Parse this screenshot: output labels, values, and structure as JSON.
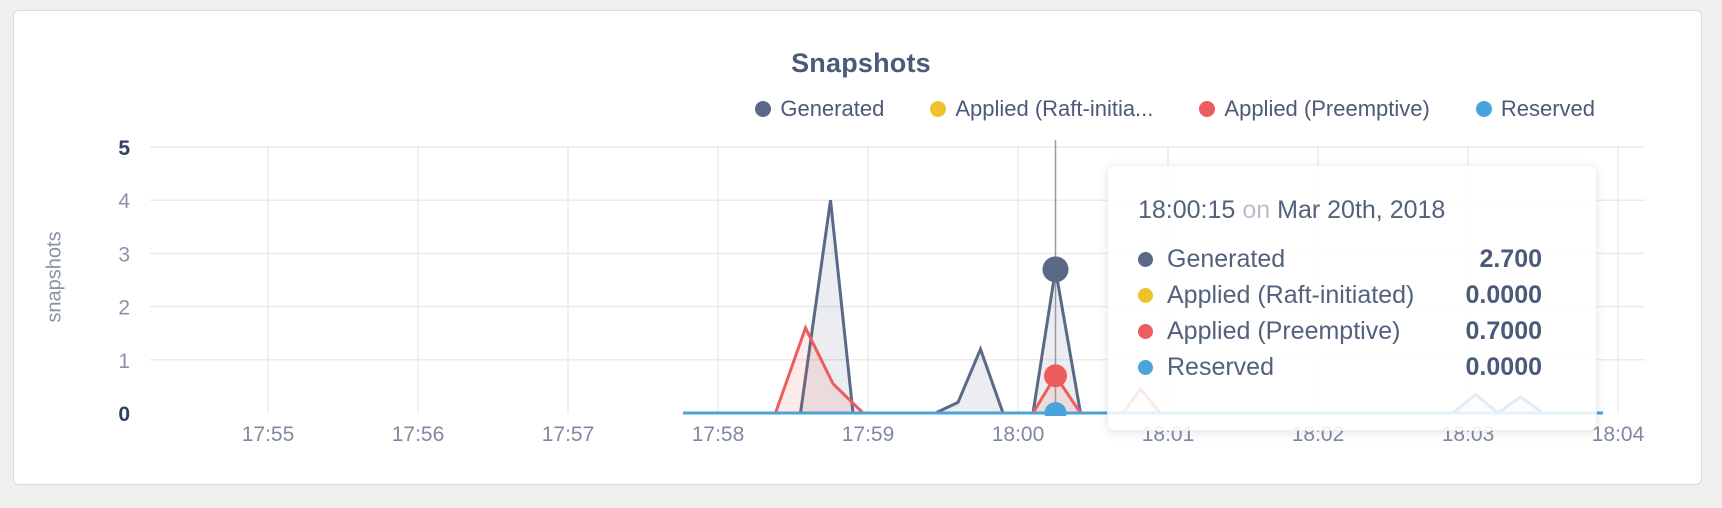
{
  "page": {
    "background": "#efefed"
  },
  "chart": {
    "title": "Snapshots",
    "y_axis_label": "snapshots",
    "legend": [
      {
        "label": "Generated",
        "color": "#5a6987"
      },
      {
        "label": "Applied (Raft-initia...",
        "color": "#f0c12e"
      },
      {
        "label": "Applied (Preemptive)",
        "color": "#ee5d5e"
      },
      {
        "label": "Reserved",
        "color": "#4aa3da"
      }
    ]
  },
  "tooltip": {
    "time": "18:00:15",
    "conjunction": "on",
    "date": "Mar 20th, 2018",
    "rows": [
      {
        "label": "Generated",
        "value": "2.700",
        "color": "#5a6987"
      },
      {
        "label": "Applied (Raft-initiated)",
        "value": "0.0000",
        "color": "#f0c12e"
      },
      {
        "label": "Applied (Preemptive)",
        "value": "0.7000",
        "color": "#ee5d5e"
      },
      {
        "label": "Reserved",
        "value": "0.0000",
        "color": "#4aa3da"
      }
    ]
  },
  "chart_data": {
    "type": "area",
    "title": "Snapshots",
    "ylabel": "snapshots",
    "xlabel": "",
    "ylim": [
      0,
      5
    ],
    "y_ticks": [
      0,
      1,
      2,
      3,
      4,
      5
    ],
    "x_domain": [
      "17:54:12",
      "18:04:12"
    ],
    "x_ticks": [
      {
        "t": "17:55:00",
        "label": "17:55"
      },
      {
        "t": "17:56:00",
        "label": "17:56"
      },
      {
        "t": "17:57:00",
        "label": "17:57"
      },
      {
        "t": "17:58:00",
        "label": "17:58"
      },
      {
        "t": "17:59:00",
        "label": "17:59"
      },
      {
        "t": "18:00:00",
        "label": "18:00"
      },
      {
        "t": "18:01:00",
        "label": "18:01"
      },
      {
        "t": "18:02:00",
        "label": "18:02"
      },
      {
        "t": "18:03:00",
        "label": "18:03"
      },
      {
        "t": "18:04:00",
        "label": "18:04"
      }
    ],
    "grid": true,
    "legend_position": "top-right",
    "series": [
      {
        "name": "Generated",
        "color": "#5a6987",
        "area": true,
        "points": [
          [
            "17:57:46",
            0
          ],
          [
            "17:58:33",
            0
          ],
          [
            "17:58:45",
            4.0
          ],
          [
            "17:58:54",
            0
          ],
          [
            "17:59:27",
            0
          ],
          [
            "17:59:36",
            0.2
          ],
          [
            "17:59:45",
            1.2
          ],
          [
            "17:59:54",
            0
          ],
          [
            "18:00:06",
            0
          ],
          [
            "18:00:15",
            2.7
          ],
          [
            "18:00:25",
            0
          ],
          [
            "18:02:54",
            0
          ],
          [
            "18:03:03",
            0.35
          ],
          [
            "18:03:12",
            0
          ],
          [
            "18:03:21",
            0.3
          ],
          [
            "18:03:30",
            0
          ],
          [
            "18:03:54",
            0
          ]
        ]
      },
      {
        "name": "Applied (Raft-initiated)",
        "color": "#f0c12e",
        "area": false,
        "points": [
          [
            "17:57:46",
            0
          ],
          [
            "18:03:54",
            0
          ]
        ]
      },
      {
        "name": "Applied (Preemptive)",
        "color": "#ee5d5e",
        "area": true,
        "points": [
          [
            "17:57:46",
            0
          ],
          [
            "17:58:23",
            0
          ],
          [
            "17:58:35",
            1.6
          ],
          [
            "17:58:46",
            0.55
          ],
          [
            "17:58:58",
            0
          ],
          [
            "18:00:06",
            0
          ],
          [
            "18:00:15",
            0.7
          ],
          [
            "18:00:25",
            0
          ],
          [
            "18:00:42",
            0
          ],
          [
            "18:00:49",
            0.45
          ],
          [
            "18:00:57",
            0
          ],
          [
            "18:03:54",
            0
          ]
        ]
      },
      {
        "name": "Reserved",
        "color": "#4aa3da",
        "area": false,
        "points": [
          [
            "17:57:46",
            0
          ],
          [
            "18:03:54",
            0
          ]
        ]
      }
    ],
    "hover": {
      "t": "18:00:15",
      "line_color": "#9b9b9b",
      "markers": [
        {
          "series": "Generated",
          "value": 2.7,
          "color": "#5a6987",
          "r": 13
        },
        {
          "series": "Applied (Preemptive)",
          "value": 0.7,
          "color": "#ee5d5e",
          "r": 11.5
        },
        {
          "series": "Reserved",
          "value": 0.0,
          "color": "#4aa3da",
          "r": 11
        }
      ]
    },
    "grid_color": "#e9ebee"
  }
}
